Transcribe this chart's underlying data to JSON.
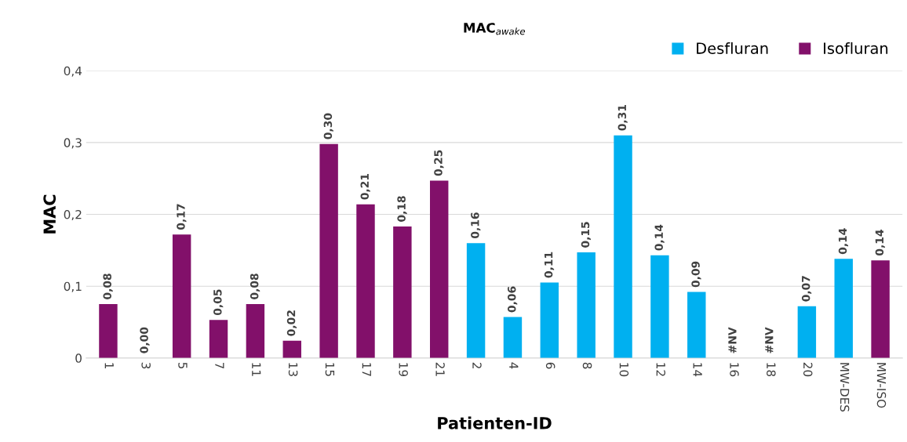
{
  "chart_data": {
    "type": "bar",
    "title": "MAC$_{awake}$",
    "xlabel": "Patienten-ID",
    "ylabel": "MAC",
    "categories": [
      "1",
      "3",
      "5",
      "7",
      "11",
      "13",
      "15",
      "17",
      "19",
      "21",
      "2",
      "4",
      "6",
      "8",
      "10",
      "12",
      "14",
      "16",
      "18",
      "20",
      "MW-DES",
      "MW-ISO"
    ],
    "series": [
      {
        "name": "Desfluran",
        "color": "#00b0f0",
        "values": [
          null,
          null,
          null,
          null,
          null,
          null,
          null,
          null,
          null,
          null,
          0.16,
          0.057,
          0.105,
          0.147,
          0.31,
          0.143,
          0.092,
          null,
          null,
          0.072,
          0.138,
          null
        ],
        "value_labels": [
          null,
          null,
          null,
          null,
          null,
          null,
          null,
          null,
          null,
          null,
          "0,16",
          "0,06",
          "0,11",
          "0,15",
          "0,31",
          "0,14",
          "0,09",
          "#NV",
          "#NV",
          "0,07",
          "0,14",
          null
        ]
      },
      {
        "name": "Isofluran",
        "color": "#82106a",
        "values": [
          0.075,
          0,
          0.172,
          0.053,
          0.075,
          0.024,
          0.298,
          0.214,
          0.183,
          0.247,
          null,
          null,
          null,
          null,
          null,
          null,
          null,
          null,
          null,
          null,
          null,
          0.136
        ],
        "value_labels": [
          "0,08",
          "0,00",
          "0,17",
          "0,05",
          "0,08",
          "0,02",
          "0,30",
          "0,21",
          "0,18",
          "0,25",
          null,
          null,
          null,
          null,
          null,
          null,
          null,
          null,
          null,
          null,
          null,
          "0,14"
        ]
      }
    ],
    "ylim": [
      0,
      0.4
    ],
    "yticks": [
      {
        "value": 0,
        "label": "0"
      },
      {
        "value": 0.1,
        "label": "0,1"
      },
      {
        "value": 0.2,
        "label": "0,2"
      },
      {
        "value": 0.3,
        "label": "0,3"
      },
      {
        "value": 0.4,
        "label": "0,4"
      }
    ],
    "grid": "y",
    "legend": "top right"
  }
}
